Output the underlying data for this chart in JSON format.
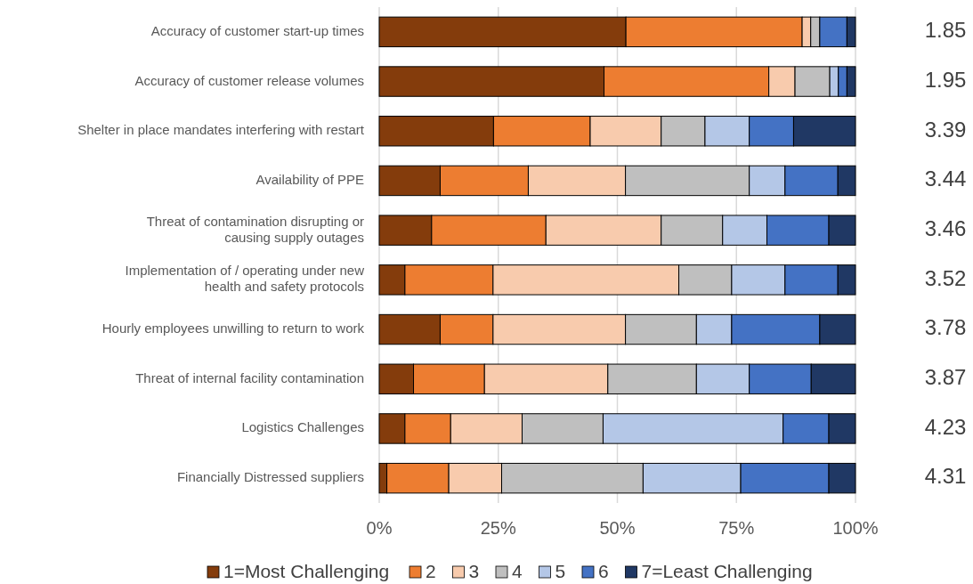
{
  "chart_data": {
    "type": "bar",
    "orientation": "horizontal",
    "stacked": true,
    "categories": [
      "Accuracy of customer start-up times",
      "Accuracy of customer release volumes",
      "Shelter in place mandates interfering with restart",
      "Availability of PPE",
      "Threat of contamination disrupting or causing supply outages",
      "Implementation of / operating under new health and safety protocols",
      "Hourly employees unwilling to return to work",
      "Threat of internal facility contamination",
      "Logistics Challenges",
      "Financially Distressed suppliers"
    ],
    "series": [
      {
        "name": "1=Most Challenging",
        "color": "#843c0c",
        "values": [
          51.8,
          47.2,
          24.0,
          12.8,
          11.0,
          5.4,
          12.8,
          7.2,
          5.4,
          1.6
        ]
      },
      {
        "name": "2",
        "color": "#ed7d31",
        "values": [
          37.0,
          34.6,
          20.3,
          18.5,
          24.0,
          18.5,
          11.1,
          14.9,
          9.6,
          13.0
        ]
      },
      {
        "name": "3",
        "color": "#f8cbad",
        "values": [
          1.8,
          5.5,
          14.9,
          20.4,
          24.2,
          39.0,
          27.8,
          25.9,
          15.0,
          11.1
        ]
      },
      {
        "name": "4",
        "color": "#bfbfbf",
        "values": [
          1.9,
          7.3,
          9.2,
          26.0,
          12.9,
          11.1,
          14.9,
          18.6,
          17.0,
          29.7
        ]
      },
      {
        "name": "5",
        "color": "#b4c7e7",
        "values": [
          0,
          1.8,
          9.3,
          7.5,
          9.3,
          11.2,
          7.4,
          11.1,
          37.8,
          20.5
        ]
      },
      {
        "name": "6",
        "color": "#4472c4",
        "values": [
          5.7,
          1.8,
          9.3,
          11.1,
          13.0,
          11.1,
          18.5,
          13.0,
          9.6,
          18.5
        ]
      },
      {
        "name": "7=Least Challenging",
        "color": "#203864",
        "values": [
          1.8,
          1.8,
          13.0,
          3.7,
          5.6,
          3.7,
          7.5,
          9.3,
          5.6,
          5.6
        ]
      }
    ],
    "xlim": [
      0,
      100
    ],
    "xticks": [
      {
        "value": 0,
        "label": "0%"
      },
      {
        "value": 25,
        "label": "25%"
      },
      {
        "value": 50,
        "label": "50%"
      },
      {
        "value": 75,
        "label": "75%"
      },
      {
        "value": 100,
        "label": "100%"
      }
    ],
    "grid": "x",
    "legend": "bottom",
    "annotations": [
      "1.85",
      "1.95",
      "3.39",
      "3.44",
      "3.46",
      "3.52",
      "3.78",
      "3.87",
      "4.23",
      "4.31"
    ]
  }
}
